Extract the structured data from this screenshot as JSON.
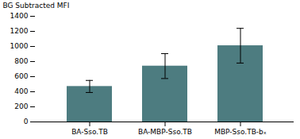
{
  "chart_data": {
    "type": "bar",
    "categories": [
      "BA-Sso.TB",
      "BA-MBP-Sso.TB",
      "MBP-Sso.TB-bₓ"
    ],
    "values": [
      470,
      740,
      1010
    ],
    "errors": [
      80,
      165,
      230
    ],
    "color": "#4d7c80",
    "ylabel": "BG Subtracted MFI",
    "ylim": [
      0,
      1400
    ],
    "yticks": [
      0,
      200,
      400,
      600,
      800,
      1000,
      1200,
      1400
    ]
  }
}
